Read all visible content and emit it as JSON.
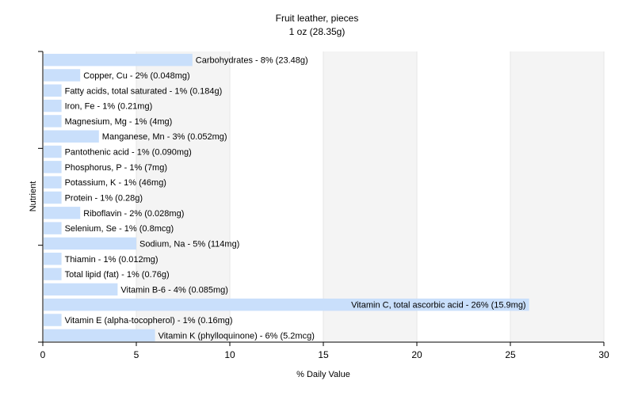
{
  "chart_data": {
    "type": "bar",
    "orientation": "horizontal",
    "title": "Fruit leather, pieces",
    "subtitle": "1 oz (28.35g)",
    "xlabel": "% Daily Value",
    "ylabel": "Nutrient",
    "xlim": [
      0,
      30
    ],
    "xticks": [
      0,
      5,
      10,
      15,
      20,
      25,
      30
    ],
    "grid": "vertical-bands",
    "bar_color": "#c9dffb",
    "categories": [
      "Carbohydrates - 8% (23.48g)",
      "Copper, Cu - 2% (0.048mg)",
      "Fatty acids, total saturated - 1% (0.184g)",
      "Iron, Fe - 1% (0.21mg)",
      "Magnesium, Mg - 1% (4mg)",
      "Manganese, Mn - 3% (0.052mg)",
      "Pantothenic acid - 1% (0.090mg)",
      "Phosphorus, P - 1% (7mg)",
      "Potassium, K - 1% (46mg)",
      "Protein - 1% (0.28g)",
      "Riboflavin - 2% (0.028mg)",
      "Selenium, Se - 1% (0.8mcg)",
      "Sodium, Na - 5% (114mg)",
      "Thiamin - 1% (0.012mg)",
      "Total lipid (fat) - 1% (0.76g)",
      "Vitamin B-6 - 4% (0.085mg)",
      "Vitamin C, total ascorbic acid - 26% (15.9mg)",
      "Vitamin E (alpha-tocopherol) - 1% (0.16mg)",
      "Vitamin K (phylloquinone) - 6% (5.2mcg)"
    ],
    "values": [
      8,
      2,
      1,
      1,
      1,
      3,
      1,
      1,
      1,
      1,
      2,
      1,
      5,
      1,
      1,
      4,
      26,
      1,
      6
    ]
  }
}
